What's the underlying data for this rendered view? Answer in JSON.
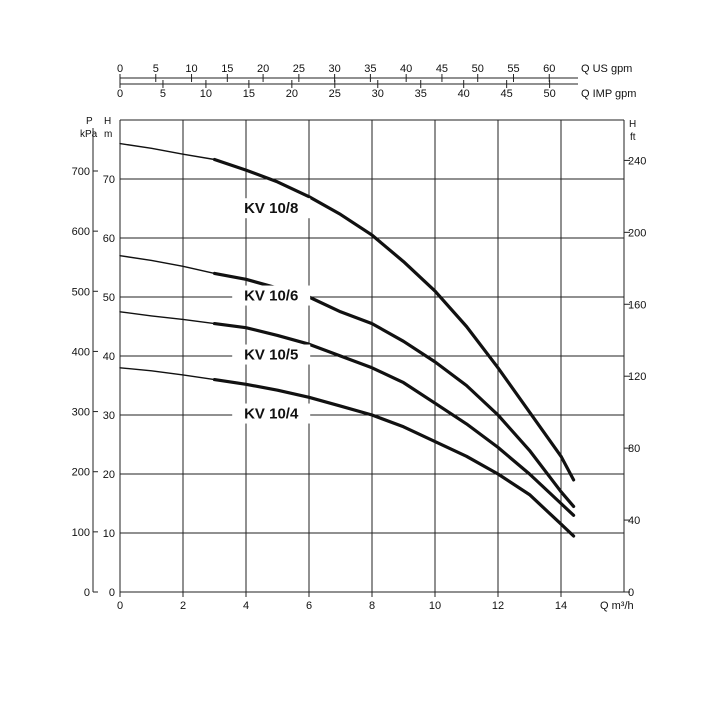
{
  "chart_data": {
    "type": "line",
    "title": "",
    "x_axis": {
      "label": "Q m³/h",
      "range": [
        0,
        16
      ],
      "ticks": [
        "0",
        "2",
        "4",
        "6",
        "8",
        "10",
        "12",
        "14"
      ]
    },
    "y_axis_left_m": {
      "label_top": "H",
      "label_unit": "m",
      "range": [
        0,
        80
      ],
      "ticks": [
        "0",
        "10",
        "20",
        "30",
        "40",
        "50",
        "60",
        "70"
      ]
    },
    "y_axis_left_kpa": {
      "label_top": "P",
      "label_unit": "kPa",
      "ticks": [
        "0",
        "100",
        "200",
        "300",
        "400",
        "500",
        "600",
        "700"
      ]
    },
    "y_axis_right_ft": {
      "label_top": "H",
      "label_unit": "ft",
      "ticks": [
        "0",
        "40",
        "80",
        "120",
        "160",
        "200",
        "240"
      ]
    },
    "top_axis_us": {
      "label": "Q US gpm",
      "ticks": [
        "0",
        "5",
        "10",
        "15",
        "20",
        "25",
        "30",
        "35",
        "40",
        "45",
        "50",
        "55",
        "60"
      ]
    },
    "top_axis_imp": {
      "label": "Q IMP gpm",
      "ticks": [
        "0",
        "5",
        "10",
        "15",
        "20",
        "25",
        "30",
        "35",
        "40",
        "45",
        "50"
      ]
    },
    "grid": true,
    "bold_from_x": 3,
    "series": [
      {
        "name": "KV 10/8",
        "x": [
          0,
          1,
          2,
          3,
          4,
          5,
          6,
          7,
          8,
          9,
          10,
          11,
          12,
          13,
          14,
          14.4
        ],
        "y": [
          76,
          75.2,
          74.2,
          73.3,
          71.5,
          69.5,
          67,
          64,
          60.5,
          56,
          51,
          45,
          38,
          30.5,
          23,
          19
        ]
      },
      {
        "name": "KV 10/6",
        "x": [
          0,
          1,
          2,
          3,
          4,
          5,
          6,
          7,
          8,
          9,
          10,
          11,
          12,
          13,
          14,
          14.4
        ],
        "y": [
          57,
          56.2,
          55.2,
          54,
          53,
          51.5,
          50,
          47.5,
          45.5,
          42.5,
          39,
          35,
          30,
          24,
          17,
          14.5
        ]
      },
      {
        "name": "KV 10/5",
        "x": [
          0,
          1,
          2,
          3,
          4,
          5,
          6,
          7,
          8,
          9,
          10,
          11,
          12,
          13,
          14,
          14.4
        ],
        "y": [
          47.5,
          46.8,
          46.2,
          45.5,
          44.8,
          43.5,
          42,
          40,
          38,
          35.5,
          32,
          28.5,
          24.5,
          20,
          15,
          13
        ]
      },
      {
        "name": "KV 10/4",
        "x": [
          0,
          1,
          2,
          3,
          4,
          5,
          6,
          7,
          8,
          9,
          10,
          11,
          12,
          13,
          14,
          14.4
        ],
        "y": [
          38,
          37.5,
          36.8,
          36,
          35.2,
          34.2,
          33,
          31.5,
          30,
          28,
          25.5,
          23,
          20,
          16.5,
          11.5,
          9.5
        ]
      }
    ]
  }
}
